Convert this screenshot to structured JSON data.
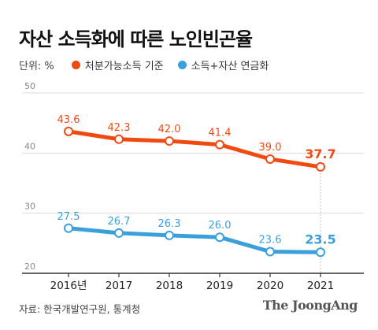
{
  "title": "자산 소득화에 따른 노인빈곤율",
  "unit_label": "단위: %",
  "source": "자료: 한국개발연구원, 통계청",
  "brand": "The JoongAng",
  "chart_data": {
    "type": "line",
    "title": "자산 소득화에 따른 노인빈곤율",
    "xlabel": "",
    "ylabel": "",
    "categories": [
      "2016년",
      "2017",
      "2018",
      "2019",
      "2020",
      "2021"
    ],
    "y_ticks": [
      20,
      30,
      40,
      50
    ],
    "ylim": [
      20,
      50
    ],
    "grid": true,
    "legend_position": "top-left",
    "series": [
      {
        "name": "처분가능소득 기준",
        "color": "#f04a12",
        "values": [
          43.6,
          42.3,
          42.0,
          41.4,
          39.0,
          37.7
        ]
      },
      {
        "name": "소득+자산 연금화",
        "color": "#3b9fdc",
        "values": [
          27.5,
          26.7,
          26.3,
          26.0,
          23.6,
          23.5
        ]
      }
    ]
  }
}
